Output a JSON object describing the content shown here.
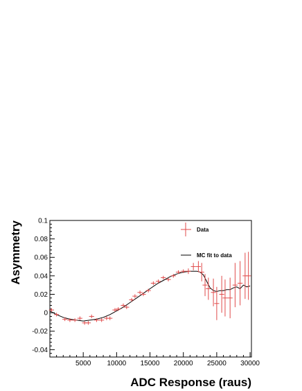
{
  "chart_data": {
    "type": "scatter",
    "xlabel": "ADC Response (raus)",
    "ylabel": "Asymmetry",
    "xlim": [
      0,
      30200
    ],
    "ylim": [
      -0.048,
      0.1
    ],
    "x_ticks": [
      5000,
      10000,
      15000,
      20000,
      25000,
      30000
    ],
    "x_tick_labels": [
      "5000",
      "10000",
      "15000",
      "20000",
      "25000",
      "30000"
    ],
    "y_ticks": [
      -0.04,
      -0.02,
      0,
      0.02,
      0.04,
      0.06,
      0.08,
      0.1
    ],
    "y_tick_labels": [
      "-0.04",
      "-0.02",
      "0",
      "0.02",
      "0.04",
      "0.06",
      "0.08",
      "0.1"
    ],
    "legend_position": "top-right",
    "colors": {
      "data": "#e04a4a",
      "fit": "#000000"
    },
    "series": [
      {
        "name": "Data",
        "style": "points-with-error-bars",
        "x": [
          250,
          1000,
          2250,
          3000,
          3750,
          4500,
          5200,
          5750,
          6250,
          7000,
          7750,
          8500,
          9000,
          9750,
          10250,
          11000,
          11500,
          12250,
          12750,
          13500,
          14000,
          14750,
          15500,
          16250,
          17000,
          17750,
          18500,
          19250,
          20000,
          20750,
          21500,
          22250,
          22750,
          23250,
          23750,
          24500,
          25000,
          25750,
          26250,
          27000,
          27750,
          28500,
          29250,
          29750
        ],
        "y": [
          0.003,
          -0.002,
          -0.007,
          -0.008,
          -0.008,
          -0.006,
          -0.011,
          -0.011,
          -0.004,
          -0.008,
          -0.008,
          -0.006,
          -0.006,
          0.003,
          0.004,
          0.008,
          0.006,
          0.014,
          0.018,
          0.022,
          0.02,
          0.024,
          0.032,
          0.034,
          0.038,
          0.036,
          0.04,
          0.044,
          0.045,
          0.045,
          0.05,
          0.05,
          0.044,
          0.03,
          0.026,
          0.022,
          0.01,
          0.02,
          0.016,
          0.016,
          0.03,
          0.032,
          0.04,
          0.04
        ],
        "y_err": [
          0.002,
          0.002,
          0.002,
          0.002,
          0.002,
          0.002,
          0.002,
          0.002,
          0.002,
          0.002,
          0.002,
          0.002,
          0.002,
          0.002,
          0.002,
          0.002,
          0.002,
          0.002,
          0.002,
          0.002,
          0.002,
          0.002,
          0.002,
          0.002,
          0.002,
          0.002,
          0.002,
          0.002,
          0.002,
          0.003,
          0.004,
          0.006,
          0.01,
          0.012,
          0.012,
          0.015,
          0.018,
          0.02,
          0.02,
          0.022,
          0.024,
          0.024,
          0.025,
          0.026
        ],
        "x_err": 375
      },
      {
        "name": "MC fit to data",
        "style": "line",
        "x": [
          0,
          1000,
          2000,
          3000,
          4000,
          5000,
          6000,
          7000,
          8000,
          9000,
          10000,
          11000,
          12000,
          13000,
          14000,
          15000,
          16000,
          17000,
          18000,
          19000,
          20000,
          21000,
          22000,
          22500,
          23000,
          23500,
          24000,
          24500,
          25000,
          25500,
          26000,
          26500,
          27000,
          27500,
          28000,
          28500,
          29000,
          29500,
          30000
        ],
        "y": [
          0.002,
          -0.002,
          -0.005,
          -0.007,
          -0.008,
          -0.009,
          -0.008,
          -0.007,
          -0.005,
          -0.002,
          0.002,
          0.006,
          0.011,
          0.016,
          0.021,
          0.026,
          0.031,
          0.035,
          0.039,
          0.042,
          0.044,
          0.045,
          0.045,
          0.044,
          0.041,
          0.034,
          0.027,
          0.024,
          0.023,
          0.024,
          0.024,
          0.025,
          0.025,
          0.027,
          0.028,
          0.026,
          0.03,
          0.028,
          0.029
        ]
      }
    ]
  }
}
